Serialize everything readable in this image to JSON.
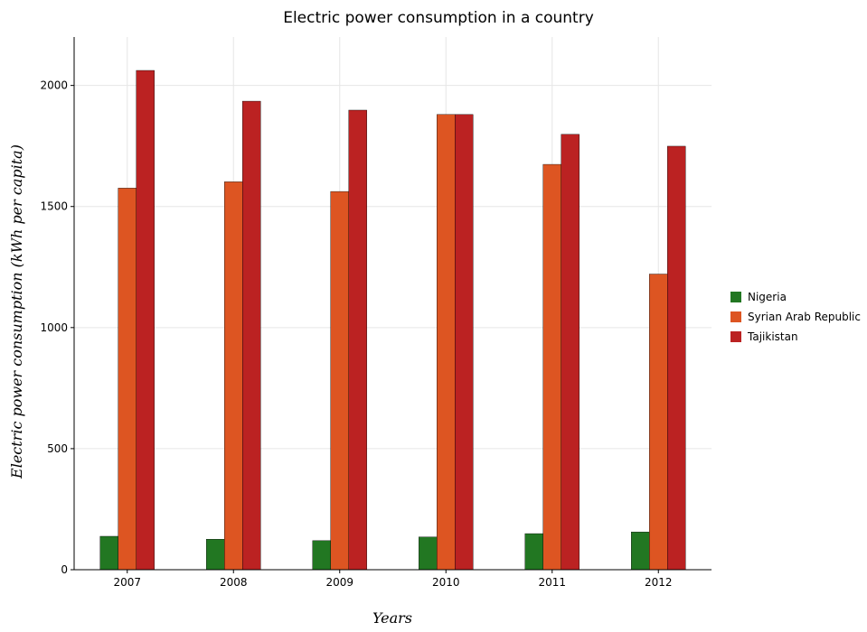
{
  "title": "Electric power consumption in a country",
  "chart_data": {
    "type": "bar",
    "title": "Electric power consumption in a country",
    "xlabel": "Years",
    "ylabel": "Electric power consumption (kWh per capita)",
    "categories": [
      "2007",
      "2008",
      "2009",
      "2010",
      "2011",
      "2012"
    ],
    "series": [
      {
        "name": "Nigeria",
        "color": "#227722",
        "values": [
          138,
          126,
          120,
          135,
          149,
          156
        ]
      },
      {
        "name": "Syrian Arab Republic",
        "color": "#dd5522",
        "values": [
          1576,
          1602,
          1562,
          1880,
          1674,
          1221
        ]
      },
      {
        "name": "Tajikistan",
        "color": "#bb2222",
        "values": [
          2062,
          1935,
          1898,
          1880,
          1798,
          1749
        ]
      }
    ],
    "ylim": [
      0,
      2200
    ],
    "yticks": [
      0,
      500,
      1000,
      1500,
      2000
    ],
    "grid": true,
    "legend_position": "right"
  }
}
